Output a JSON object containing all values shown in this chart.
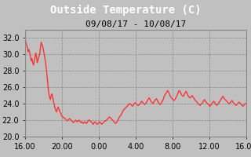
{
  "title": "Outside Temperature (C)",
  "subtitle": "09/08/17 - 10/08/17",
  "title_color": "#ffffff",
  "subtitle_color": "#000000",
  "background_color": "#c0c0c0",
  "plot_bg_color": "#c0c0c0",
  "line_color": "#ff3333",
  "line_width": 1.0,
  "ylim": [
    20.0,
    33.0
  ],
  "yticks": [
    20.0,
    22.0,
    24.0,
    26.0,
    28.0,
    30.0,
    32.0
  ],
  "xtick_labels": [
    "16.00",
    "20.00",
    "0.00",
    "4.00",
    "8.00",
    "12.00",
    "16.00"
  ],
  "xtick_positions": [
    0,
    4,
    8,
    12,
    16,
    20,
    24
  ],
  "title_fontsize": 10,
  "subtitle_fontsize": 8,
  "tick_fontsize": 7,
  "y_data": [
    32.0,
    31.5,
    31.2,
    30.8,
    30.3,
    30.6,
    30.2,
    29.8,
    29.2,
    29.5,
    29.0,
    28.7,
    29.2,
    29.8,
    30.2,
    29.6,
    29.0,
    29.4,
    29.8,
    30.0,
    30.8,
    31.5,
    31.2,
    31.0,
    30.5,
    30.0,
    29.4,
    28.8,
    28.0,
    27.0,
    26.0,
    25.2,
    24.8,
    24.5,
    25.0,
    25.2,
    24.8,
    24.3,
    23.9,
    23.5,
    23.2,
    23.0,
    23.3,
    23.6,
    23.4,
    23.1,
    22.9,
    22.7,
    22.5,
    22.4,
    22.3,
    22.3,
    22.2,
    22.1,
    22.0,
    21.9,
    22.0,
    22.1,
    22.2,
    22.1,
    22.0,
    21.9,
    21.8,
    21.7,
    21.8,
    21.9,
    22.0,
    21.9,
    21.8,
    21.9,
    22.0,
    21.9,
    21.8,
    21.7,
    21.8,
    21.7,
    21.6,
    21.7,
    21.8,
    21.7,
    21.6,
    21.7,
    21.9,
    22.0,
    22.0,
    21.9,
    21.8,
    21.7,
    21.6,
    21.5,
    21.7,
    21.8,
    21.7,
    21.6,
    21.5,
    21.6,
    21.7,
    21.8,
    21.7,
    21.6,
    21.5,
    21.6,
    21.7,
    21.8,
    21.9,
    21.9,
    22.0,
    22.1,
    22.2,
    22.3,
    22.4,
    22.3,
    22.2,
    22.1,
    22.0,
    21.9,
    21.8,
    21.7,
    21.6,
    21.7,
    21.8,
    22.0,
    22.2,
    22.4,
    22.5,
    22.6,
    22.8,
    23.0,
    23.2,
    23.3,
    23.4,
    23.5,
    23.6,
    23.7,
    23.8,
    23.9,
    24.0,
    24.0,
    23.9,
    23.8,
    23.7,
    23.8,
    24.0,
    24.1,
    24.1,
    24.0,
    23.9,
    23.8,
    23.8,
    23.9,
    24.0,
    24.2,
    24.3,
    24.2,
    24.1,
    24.0,
    23.9,
    24.0,
    24.1,
    24.3,
    24.5,
    24.6,
    24.7,
    24.5,
    24.3,
    24.2,
    24.1,
    24.0,
    24.2,
    24.4,
    24.5,
    24.6,
    24.5,
    24.3,
    24.1,
    24.0,
    23.9,
    24.0,
    24.2,
    24.3,
    24.5,
    24.8,
    25.0,
    25.2,
    25.3,
    25.5,
    25.6,
    25.4,
    25.2,
    25.0,
    24.8,
    24.7,
    24.6,
    24.5,
    24.4,
    24.5,
    24.6,
    24.8,
    25.0,
    25.2,
    25.5,
    25.6,
    25.5,
    25.3,
    25.1,
    25.0,
    24.9,
    25.0,
    25.2,
    25.4,
    25.5,
    25.3,
    25.1,
    24.9,
    24.8,
    24.7,
    24.8,
    24.9,
    25.0,
    24.8,
    24.7,
    24.5,
    24.4,
    24.3,
    24.2,
    24.1,
    24.0,
    23.9,
    23.8,
    23.9,
    24.0,
    24.1,
    24.2,
    24.4,
    24.5,
    24.3,
    24.2,
    24.1,
    24.0,
    23.9,
    23.8,
    23.7,
    23.8,
    23.9,
    24.1,
    24.2,
    24.3,
    24.2,
    24.0,
    23.9,
    23.8,
    23.9,
    24.0,
    24.2,
    24.3,
    24.5,
    24.6,
    24.8,
    24.9,
    24.7,
    24.6,
    24.5,
    24.4,
    24.3,
    24.2,
    24.1,
    24.0,
    24.1,
    24.2,
    24.3,
    24.4,
    24.2,
    24.1,
    24.0,
    23.9,
    23.8,
    23.9,
    24.0,
    24.1,
    24.2,
    24.1,
    24.0,
    23.9,
    23.8,
    23.7,
    23.8,
    23.9,
    24.0,
    24.0
  ]
}
